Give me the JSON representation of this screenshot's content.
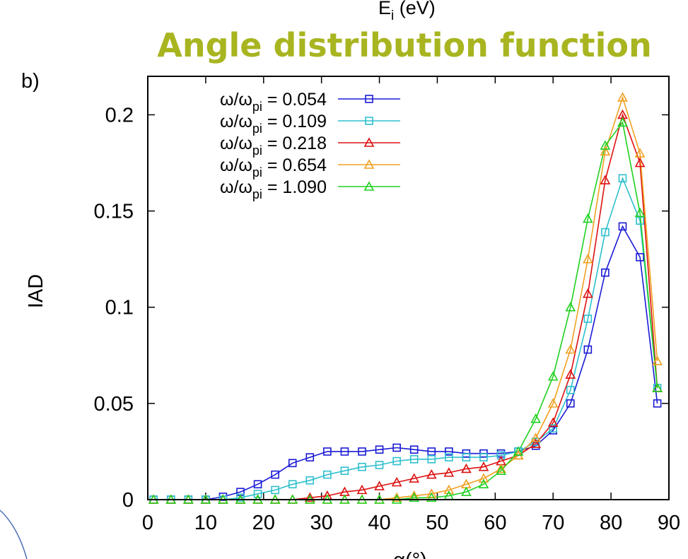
{
  "header_cut_label": "E",
  "header_cut_sub": "i",
  "header_cut_unit": " (eV)",
  "title": "Angle distribution function",
  "panel_label": "b)",
  "title_color": "#a8b520",
  "chart_data": {
    "type": "line",
    "ylabel": "IAD",
    "xlabel": "α(°)",
    "xlim": [
      0,
      90
    ],
    "ylim": [
      0,
      0.22
    ],
    "x_ticks": [
      "0",
      "10",
      "20",
      "30",
      "40",
      "50",
      "60",
      "70",
      "80",
      "90"
    ],
    "y_ticks": [
      "0",
      "0.05",
      "0.1",
      "0.15",
      "0.2"
    ],
    "x_tick_values": [
      0,
      10,
      20,
      30,
      40,
      50,
      60,
      70,
      80,
      90
    ],
    "y_tick_values": [
      0,
      0.05,
      0.1,
      0.15,
      0.2
    ],
    "grid": false,
    "legend_position": "top-left",
    "legend_prefix": "ω/ω",
    "legend_sub": "pi",
    "x": [
      1,
      4,
      7,
      10,
      13,
      16,
      19,
      22,
      25,
      28,
      31,
      34,
      37,
      40,
      43,
      46,
      49,
      52,
      55,
      58,
      61,
      64,
      67,
      70,
      73,
      76,
      79,
      82,
      85,
      88
    ],
    "series": [
      {
        "name": " = 0.054",
        "color": "#1a1ad6",
        "marker": "square",
        "values": [
          0,
          0,
          0,
          0,
          0.0015,
          0.004,
          0.008,
          0.013,
          0.019,
          0.022,
          0.025,
          0.025,
          0.025,
          0.026,
          0.027,
          0.026,
          0.025,
          0.025,
          0.024,
          0.024,
          0.024,
          0.025,
          0.028,
          0.036,
          0.05,
          0.078,
          0.118,
          0.142,
          0.126,
          0.05
        ]
      },
      {
        "name": " = 0.109",
        "color": "#2ec0cc",
        "marker": "square",
        "values": [
          0,
          0,
          0,
          0,
          0,
          0.001,
          0.003,
          0.005,
          0.008,
          0.01,
          0.013,
          0.015,
          0.017,
          0.018,
          0.02,
          0.021,
          0.021,
          0.022,
          0.022,
          0.022,
          0.023,
          0.025,
          0.03,
          0.037,
          0.057,
          0.094,
          0.139,
          0.167,
          0.145,
          0.058
        ]
      },
      {
        "name": " = 0.218",
        "color": "#dd1010",
        "marker": "triangle",
        "values": [
          0,
          0,
          0,
          0,
          0,
          0,
          0,
          0,
          0,
          0.001,
          0.002,
          0.004,
          0.005,
          0.007,
          0.009,
          0.011,
          0.013,
          0.014,
          0.016,
          0.017,
          0.02,
          0.023,
          0.029,
          0.04,
          0.065,
          0.107,
          0.166,
          0.2,
          0.175,
          0.058
        ]
      },
      {
        "name": " = 0.654",
        "color": "#f0a020",
        "marker": "triangle",
        "values": [
          0,
          0,
          0,
          0,
          0,
          0,
          0,
          0,
          0,
          0,
          0,
          0,
          0,
          0,
          0.001,
          0.002,
          0.003,
          0.005,
          0.008,
          0.011,
          0.016,
          0.023,
          0.032,
          0.05,
          0.078,
          0.125,
          0.181,
          0.209,
          0.18,
          0.072
        ]
      },
      {
        "name": " = 1.090",
        "color": "#20d020",
        "marker": "triangle",
        "values": [
          0,
          0,
          0,
          0,
          0,
          0,
          0,
          0,
          0,
          0,
          0,
          0,
          0,
          0,
          0,
          0.001,
          0.001,
          0.002,
          0.004,
          0.008,
          0.015,
          0.025,
          0.042,
          0.064,
          0.1,
          0.146,
          0.184,
          0.196,
          0.149,
          0.058
        ]
      }
    ]
  }
}
